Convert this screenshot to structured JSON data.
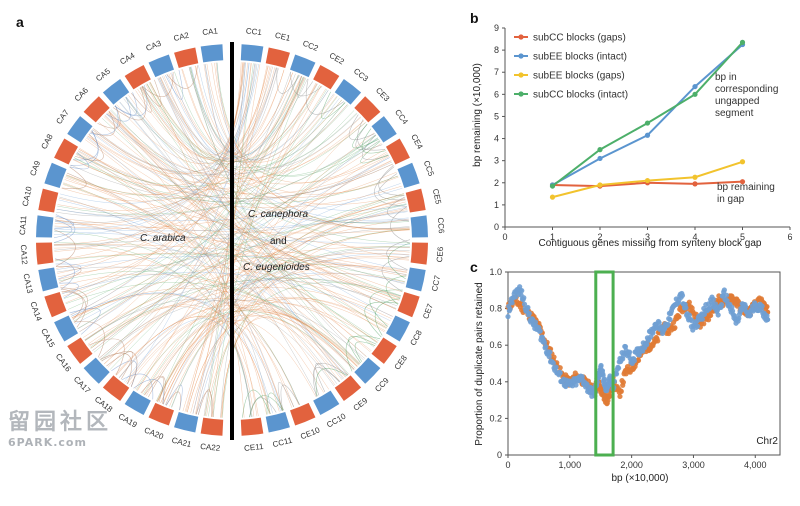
{
  "panels": {
    "a": "a",
    "b": "b",
    "c": "c"
  },
  "colors": {
    "red": "#e2623e",
    "blue": "#5b95cf",
    "yellow": "#f2c32d",
    "green": "#4daf6a",
    "orange": "#e07b35",
    "lightblue": "#6f9fd3",
    "highlight": "#4caf50",
    "axis": "#555555"
  },
  "circos": {
    "label_left": "C. arabica",
    "label_right_1": "C. canephora",
    "label_and": "and",
    "label_right_2": "C. eugenioides",
    "left_segments": [
      "CA1",
      "CA2",
      "CA3",
      "CA4",
      "CA5",
      "CA6",
      "CA7",
      "CA8",
      "CA9",
      "CA10",
      "CA11",
      "CA12",
      "CA13",
      "CA14",
      "CA15",
      "CA16",
      "CA17",
      "CA18",
      "CA19",
      "CA20",
      "CA21",
      "CA22"
    ],
    "right_segments": [
      "CC1",
      "CE1",
      "CC2",
      "CE2",
      "CC3",
      "CE3",
      "CC4",
      "CE4",
      "CC5",
      "CE5",
      "CC6",
      "CE6",
      "CC7",
      "CE7",
      "CC8",
      "CE8",
      "CC9",
      "CE9",
      "CC10",
      "CE10",
      "CC11",
      "CE11"
    ]
  },
  "watermark": {
    "line1": "留园社区",
    "line2": "6PARK.com"
  },
  "chart_data": [
    {
      "panel": "b",
      "type": "line",
      "title": "",
      "xlabel": "Contiguous genes missing from synteny block gap",
      "ylabel": "bp remaining (×10,000)",
      "xlim": [
        0,
        6
      ],
      "ylim": [
        0,
        9
      ],
      "xticks": [
        0,
        1,
        2,
        3,
        4,
        5,
        6
      ],
      "yticks": [
        0,
        1,
        2,
        3,
        4,
        5,
        6,
        7,
        8,
        9
      ],
      "legend_position": "top-left",
      "series": [
        {
          "name": "subCC blocks (gaps)",
          "color": "red",
          "x": [
            1,
            2,
            3,
            4,
            5
          ],
          "y": [
            1.9,
            1.85,
            2.0,
            1.95,
            2.05
          ]
        },
        {
          "name": "subEE blocks (intact)",
          "color": "blue",
          "x": [
            1,
            2,
            3,
            4,
            5
          ],
          "y": [
            1.9,
            3.1,
            4.15,
            6.35,
            8.25
          ]
        },
        {
          "name": "subEE blocks (gaps)",
          "color": "yellow",
          "x": [
            1,
            2,
            3,
            4,
            5
          ],
          "y": [
            1.35,
            1.9,
            2.1,
            2.25,
            2.95
          ]
        },
        {
          "name": "subCC blocks (intact)",
          "color": "green",
          "x": [
            1,
            2,
            3,
            4,
            5
          ],
          "y": [
            1.85,
            3.5,
            4.7,
            6.0,
            8.35
          ]
        }
      ],
      "annotations": [
        {
          "lines": [
            "bp in",
            "corresponding",
            "ungapped",
            "segment"
          ]
        },
        {
          "lines": [
            "bp remaining",
            "in gap"
          ]
        }
      ]
    },
    {
      "panel": "c",
      "type": "scatter",
      "title": "",
      "xlabel": "bp (×10,000)",
      "ylabel": "Proportion of duplicate pairs retained",
      "xlim": [
        0,
        4400
      ],
      "ylim": [
        0,
        1.0
      ],
      "xticks": [
        0,
        1000,
        2000,
        3000,
        4000
      ],
      "xtick_labels": [
        "0",
        "1,000",
        "2,000",
        "3,000",
        "4,000"
      ],
      "yticks": [
        0,
        0.2,
        0.4,
        0.6,
        0.8,
        1.0
      ],
      "ytick_labels": [
        "0",
        "0.2",
        "0.4",
        "0.6",
        "0.8",
        "1.0"
      ],
      "corner_label": "Chr2",
      "highlight_region": [
        1420,
        1700
      ],
      "series": [
        {
          "name": "",
          "color": "orange",
          "x": [
            0,
            100,
            200,
            300,
            400,
            500,
            600,
            700,
            800,
            900,
            1000,
            1100,
            1200,
            1300,
            1400,
            1450,
            1500,
            1550,
            1600,
            1650,
            1700,
            1800,
            1900,
            2000,
            2100,
            2200,
            2300,
            2400,
            2500,
            2600,
            2700,
            2800,
            2900,
            3000,
            3100,
            3200,
            3300,
            3400,
            3500,
            3600,
            3700,
            3800,
            3900,
            4000,
            4100,
            4200
          ],
          "y": [
            0.8,
            0.85,
            0.82,
            0.78,
            0.75,
            0.7,
            0.62,
            0.55,
            0.48,
            0.42,
            0.4,
            0.43,
            0.41,
            0.38,
            0.35,
            0.4,
            0.36,
            0.32,
            0.3,
            0.34,
            0.4,
            0.33,
            0.45,
            0.48,
            0.52,
            0.58,
            0.6,
            0.62,
            0.7,
            0.68,
            0.72,
            0.8,
            0.83,
            0.78,
            0.72,
            0.75,
            0.78,
            0.85,
            0.82,
            0.87,
            0.83,
            0.8,
            0.78,
            0.82,
            0.84,
            0.78
          ]
        },
        {
          "name": "",
          "color": "lightblue",
          "x": [
            0,
            100,
            200,
            300,
            400,
            500,
            600,
            700,
            800,
            900,
            1000,
            1100,
            1200,
            1300,
            1400,
            1450,
            1500,
            1550,
            1600,
            1650,
            1700,
            1800,
            1900,
            2000,
            2100,
            2200,
            2300,
            2400,
            2500,
            2600,
            2700,
            2800,
            2900,
            3000,
            3100,
            3200,
            3300,
            3400,
            3500,
            3600,
            3700,
            3800,
            3900,
            4000,
            4100,
            4200
          ],
          "y": [
            0.78,
            0.88,
            0.9,
            0.8,
            0.72,
            0.68,
            0.6,
            0.52,
            0.45,
            0.4,
            0.38,
            0.4,
            0.42,
            0.36,
            0.33,
            0.42,
            0.48,
            0.4,
            0.36,
            0.42,
            0.38,
            0.5,
            0.58,
            0.52,
            0.56,
            0.6,
            0.66,
            0.72,
            0.68,
            0.74,
            0.82,
            0.88,
            0.76,
            0.7,
            0.74,
            0.8,
            0.84,
            0.78,
            0.88,
            0.8,
            0.72,
            0.82,
            0.76,
            0.82,
            0.8,
            0.74
          ]
        }
      ]
    }
  ]
}
